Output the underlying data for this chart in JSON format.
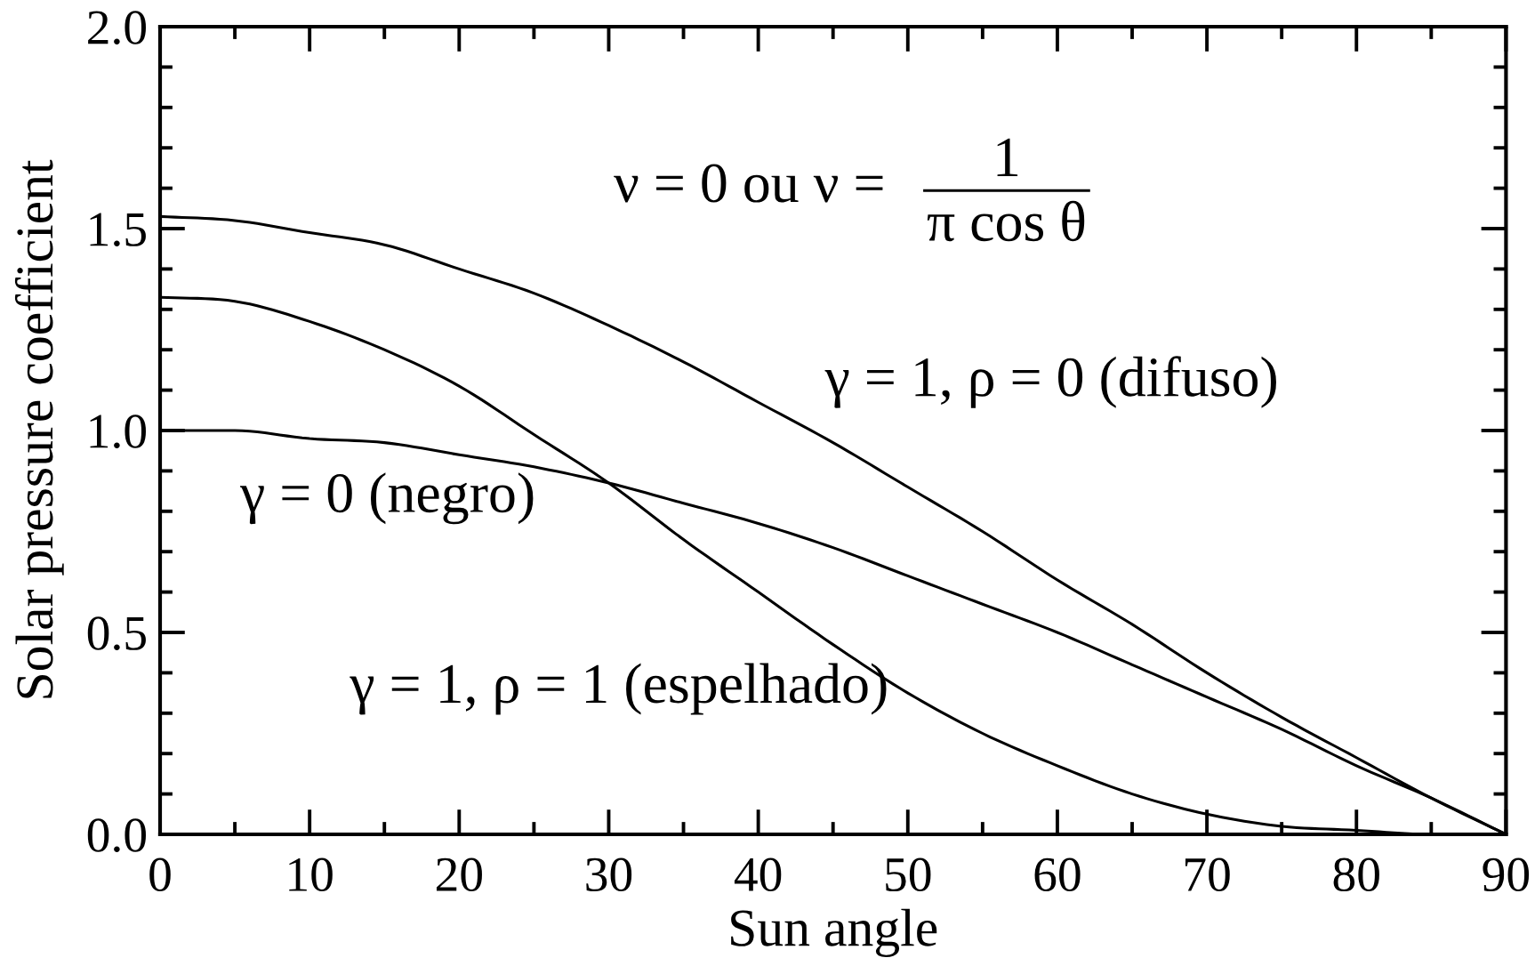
{
  "chart_data": {
    "type": "line",
    "xlabel": "Sun angle",
    "ylabel": "Solar pressure coefficient",
    "x": [
      0,
      5,
      10,
      15,
      20,
      25,
      30,
      35,
      40,
      45,
      50,
      55,
      60,
      65,
      70,
      75,
      80,
      85,
      90
    ],
    "series": [
      {
        "name": "γ = 0 (negro)",
        "color": "#000000",
        "values": [
          1.0,
          1.0,
          0.98,
          0.97,
          0.94,
          0.91,
          0.87,
          0.82,
          0.77,
          0.71,
          0.64,
          0.57,
          0.5,
          0.42,
          0.34,
          0.26,
          0.17,
          0.09,
          0.0
        ]
      },
      {
        "name": "γ = 1, ρ = 0 (difuso)",
        "color": "#000000",
        "values": [
          1.53,
          1.52,
          1.49,
          1.46,
          1.4,
          1.34,
          1.26,
          1.17,
          1.07,
          0.97,
          0.86,
          0.75,
          0.63,
          0.52,
          0.4,
          0.29,
          0.19,
          0.09,
          0.0
        ]
      },
      {
        "name": "γ = 1, ρ = 1 (espelhado)",
        "color": "#000000",
        "values": [
          1.33,
          1.32,
          1.27,
          1.2,
          1.11,
          0.99,
          0.87,
          0.73,
          0.6,
          0.47,
          0.35,
          0.25,
          0.17,
          0.1,
          0.05,
          0.02,
          0.01,
          0.0,
          0.0
        ]
      }
    ],
    "xlim": [
      0,
      90
    ],
    "ylim": [
      0,
      2
    ],
    "xticks": [
      0,
      {
        "value": 5,
        "label": null
      },
      10,
      {
        "value": 15,
        "label": null
      },
      20,
      {
        "value": 25,
        "label": null
      },
      30,
      {
        "value": 35,
        "label": null
      },
      40,
      {
        "value": 45,
        "label": null
      },
      50,
      {
        "value": 55,
        "label": null
      },
      60,
      {
        "value": 65,
        "label": null
      },
      70,
      {
        "value": 75,
        "label": null
      },
      80,
      {
        "value": 85,
        "label": null
      },
      90
    ],
    "yticks": [
      {
        "value": 0,
        "label": "0.0"
      },
      {
        "value": 0.1,
        "label": null
      },
      {
        "value": 0.2,
        "label": null
      },
      {
        "value": 0.3,
        "label": null
      },
      {
        "value": 0.4,
        "label": null
      },
      {
        "value": 0.5,
        "label": "0.5"
      },
      {
        "value": 0.6,
        "label": null
      },
      {
        "value": 0.7,
        "label": null
      },
      {
        "value": 0.8,
        "label": null
      },
      {
        "value": 0.9,
        "label": null
      },
      {
        "value": 1,
        "label": "1.0"
      },
      {
        "value": 1.1,
        "label": null
      },
      {
        "value": 1.2,
        "label": null
      },
      {
        "value": 1.3,
        "label": null
      },
      {
        "value": 1.4,
        "label": null
      },
      {
        "value": 1.5,
        "label": "1.5"
      },
      {
        "value": 1.6,
        "label": null
      },
      {
        "value": 1.7,
        "label": null
      },
      {
        "value": 1.8,
        "label": null
      },
      {
        "value": 1.9,
        "label": null
      },
      {
        "value": 2,
        "label": "2.0"
      }
    ],
    "annotations": [
      "ν = 0 ou ν =",
      "1",
      "π cos θ"
    ],
    "line_style": "solid",
    "grid": false
  }
}
